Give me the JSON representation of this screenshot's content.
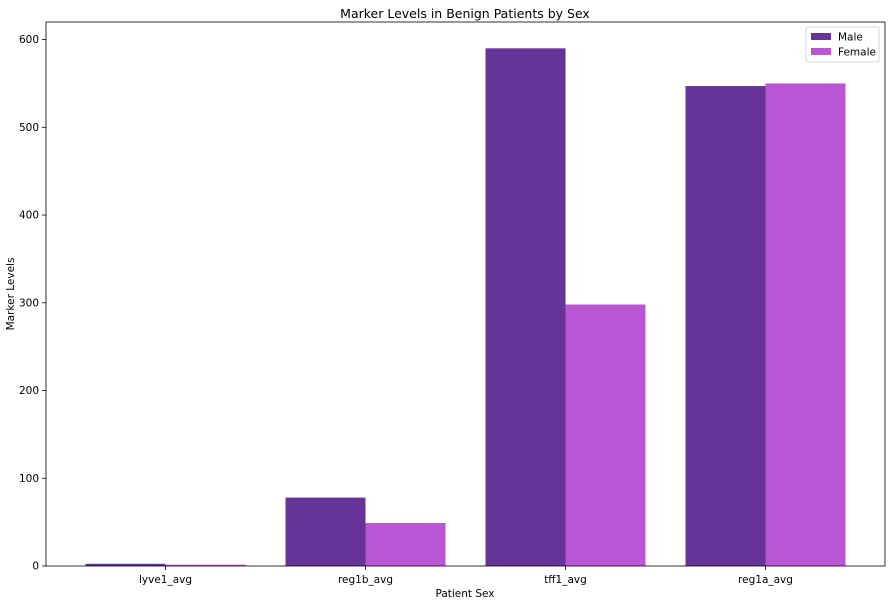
{
  "chart_data": {
    "type": "bar",
    "title": "Marker Levels in Benign Patients by Sex",
    "xlabel": "Patient Sex",
    "ylabel": "Marker Levels",
    "categories": [
      "lyve1_avg",
      "reg1b_avg",
      "tff1_avg",
      "reg1a_avg"
    ],
    "series": [
      {
        "name": "Male",
        "color": "#663399",
        "values": [
          2.5,
          78,
          590,
          547
        ]
      },
      {
        "name": "Female",
        "color": "#ba55d3",
        "values": [
          1.5,
          49,
          298,
          550
        ]
      }
    ],
    "ylim": [
      0,
      620
    ],
    "yticks": [
      0,
      100,
      200,
      300,
      400,
      500,
      600
    ],
    "grid": false,
    "legend_position": "top-right"
  }
}
